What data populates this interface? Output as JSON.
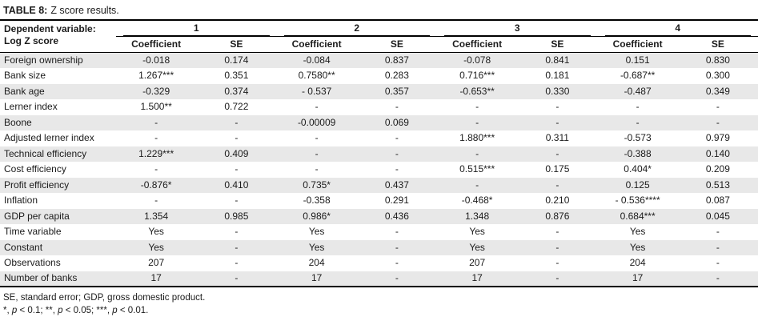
{
  "table": {
    "title_label": "TABLE 8:",
    "title_caption": "Z score results.",
    "dependent_variable_line1": "Dependent variable:",
    "dependent_variable_line2": "Log Z score",
    "models": [
      "1",
      "2",
      "3",
      "4"
    ],
    "sub_headers": [
      "Coefficient",
      "SE"
    ],
    "rows": [
      {
        "label": "Foreign ownership",
        "values": [
          "-0.018",
          "0.174",
          "-0.084",
          "0.837",
          "-0.078",
          "0.841",
          "0.151",
          "0.830"
        ]
      },
      {
        "label": "Bank size",
        "values": [
          "1.267***",
          "0.351",
          "0.7580**",
          "0.283",
          "0.716***",
          "0.181",
          "-0.687**",
          "0.300"
        ]
      },
      {
        "label": "Bank age",
        "values": [
          "-0.329",
          "0.374",
          "- 0.537",
          "0.357",
          "-0.653**",
          "0.330",
          "-0.487",
          "0.349"
        ]
      },
      {
        "label": "Lerner index",
        "values": [
          "1.500**",
          "0.722",
          "-",
          "-",
          "-",
          "-",
          "-",
          "-"
        ]
      },
      {
        "label": "Boone",
        "values": [
          "-",
          "-",
          "-0.00009",
          "0.069",
          "-",
          "-",
          "-",
          "-"
        ]
      },
      {
        "label": "Adjusted lerner index",
        "values": [
          "-",
          "-",
          "-",
          "-",
          "1.880***",
          "0.311",
          "-0.573",
          "0.979"
        ]
      },
      {
        "label": "Technical efficiency",
        "values": [
          "1.229***",
          "0.409",
          "-",
          "-",
          "-",
          "-",
          "-0.388",
          "0.140"
        ]
      },
      {
        "label": "Cost efficiency",
        "values": [
          "-",
          "-",
          "-",
          "-",
          "0.515***",
          "0.175",
          "0.404*",
          "0.209"
        ]
      },
      {
        "label": "Profit efficiency",
        "values": [
          "-0.876*",
          "0.410",
          "0.735*",
          "0.437",
          "-",
          "-",
          "0.125",
          "0.513"
        ]
      },
      {
        "label": "Inflation",
        "values": [
          "-",
          "-",
          "-0.358",
          "0.291",
          "-0.468*",
          "0.210",
          "- 0.536****",
          "0.087"
        ]
      },
      {
        "label": "GDP per capita",
        "values": [
          "1.354",
          "0.985",
          "0.986*",
          "0.436",
          "1.348",
          "0.876",
          "0.684***",
          "0.045"
        ]
      },
      {
        "label": "Time variable",
        "values": [
          "Yes",
          "-",
          "Yes",
          "-",
          "Yes",
          "-",
          "Yes",
          "-"
        ]
      },
      {
        "label": "Constant",
        "values": [
          "Yes",
          "-",
          "Yes",
          "-",
          "Yes",
          "-",
          "Yes",
          "-"
        ]
      },
      {
        "label": "Observations",
        "values": [
          "207",
          "-",
          "204",
          "-",
          "207",
          "-",
          "204",
          "-"
        ]
      },
      {
        "label": "Number of banks",
        "values": [
          "17",
          "-",
          "17",
          "-",
          "17",
          "-",
          "17",
          "-"
        ]
      }
    ],
    "footnote1": "SE, standard error; GDP, gross domestic product.",
    "footnote2": {
      "s0": "*, ",
      "s1": "p",
      "s2": " < 0.1; **, ",
      "s3": "p",
      "s4": " < 0.05; ***, ",
      "s5": "p",
      "s6": " < 0.01."
    },
    "colors": {
      "stripe": "#e8e8e8",
      "rule": "#000000",
      "text": "#1b1b1b"
    }
  }
}
